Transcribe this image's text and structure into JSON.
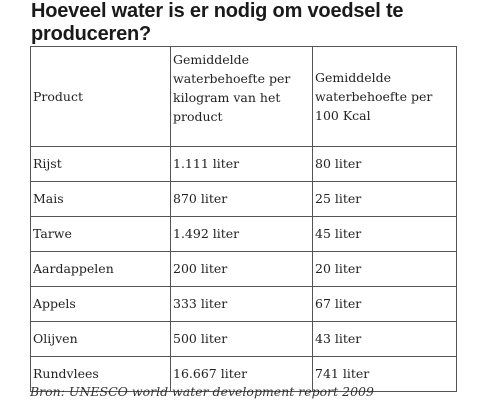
{
  "title": "Hoeveel water is er nodig om voedsel te produceren?",
  "table": {
    "headers": [
      "Product",
      "Gemiddelde waterbehoefte per kilogram van het product",
      "Gemiddelde waterbehoefte per 100 Kcal"
    ],
    "rows": [
      [
        "Rijst",
        "1.111 liter",
        "80 liter"
      ],
      [
        "Mais",
        "870 liter",
        "25 liter"
      ],
      [
        "Tarwe",
        "1.492 liter",
        "45 liter"
      ],
      [
        "Aardappelen",
        "200 liter",
        "20 liter"
      ],
      [
        "Appels",
        "333 liter",
        "67 liter"
      ],
      [
        "Olijven",
        "500 liter",
        "43 liter"
      ],
      [
        "Rundvlees",
        "16.667 liter",
        "741 liter"
      ]
    ]
  },
  "source": "Bron: UNESCO world water development report 2009"
}
